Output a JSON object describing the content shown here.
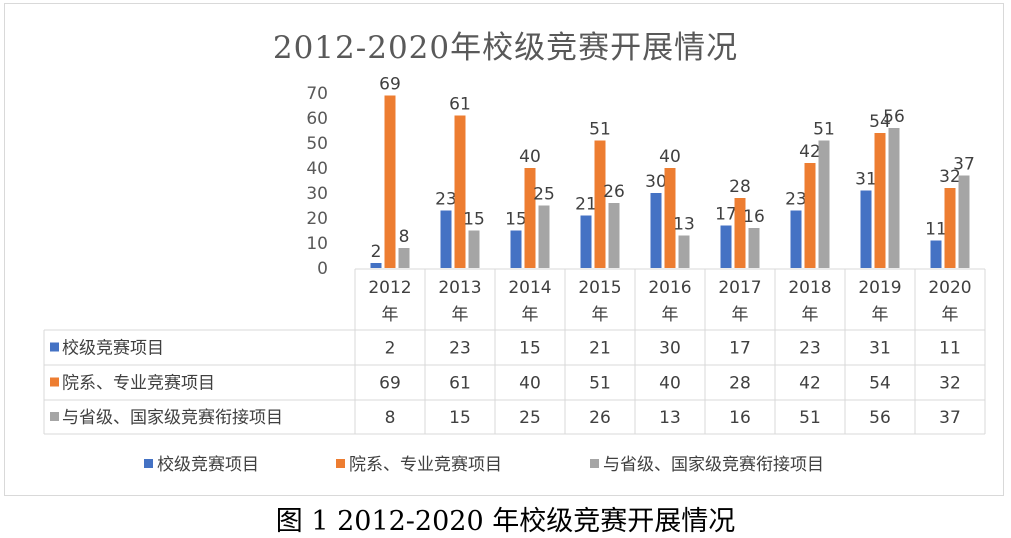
{
  "figure": {
    "title": "2012-2020年校级竞赛开展情况",
    "caption": "图 1 2012-2020 年校级竞赛开展情况"
  },
  "chart_data": {
    "type": "bar",
    "title": "2012-2020年校级竞赛开展情况",
    "categories": [
      "2012年",
      "2013年",
      "2014年",
      "2015年",
      "2016年",
      "2017年",
      "2018年",
      "2019年",
      "2020年"
    ],
    "category_parts": [
      [
        "2012",
        "年"
      ],
      [
        "2013",
        "年"
      ],
      [
        "2014",
        "年"
      ],
      [
        "2015",
        "年"
      ],
      [
        "2016",
        "年"
      ],
      [
        "2017",
        "年"
      ],
      [
        "2018",
        "年"
      ],
      [
        "2019",
        "年"
      ],
      [
        "2020",
        "年"
      ]
    ],
    "series": [
      {
        "name": "校级竞赛项目",
        "color": "#4472c4",
        "values": [
          2,
          23,
          15,
          21,
          30,
          17,
          23,
          31,
          11
        ]
      },
      {
        "name": "院系、专业竞赛项目",
        "color": "#ed7d31",
        "values": [
          69,
          61,
          40,
          51,
          40,
          28,
          42,
          54,
          32
        ]
      },
      {
        "name": "与省级、国家级竞赛衔接项目",
        "color": "#a5a5a5",
        "values": [
          8,
          15,
          25,
          26,
          13,
          16,
          51,
          56,
          37
        ]
      }
    ],
    "yticks": [
      0,
      10,
      20,
      30,
      40,
      50,
      60,
      70
    ],
    "ylim": [
      0,
      70
    ],
    "grid": false,
    "legend": "bottom",
    "data_table": true
  }
}
